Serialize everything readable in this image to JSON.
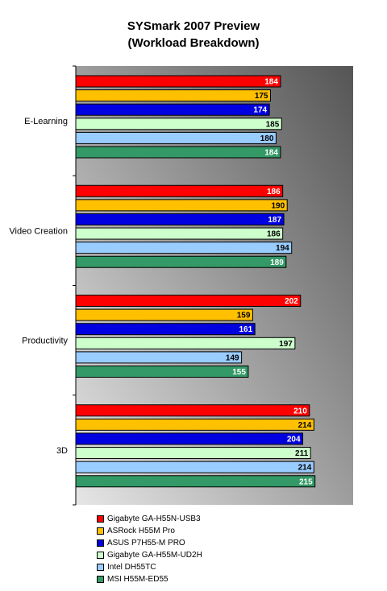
{
  "chart_data": {
    "type": "bar",
    "orientation": "horizontal",
    "title": "SYSmark 2007 Preview",
    "subtitle": "(Workload Breakdown)",
    "categories": [
      "E-Learning",
      "Video Creation",
      "Productivity",
      "3D"
    ],
    "series": [
      {
        "name": "Gigabyte GA-H55N-USB3",
        "color": "#ff0000",
        "values": [
          184,
          186,
          202,
          210
        ]
      },
      {
        "name": "ASRock H55M Pro",
        "color": "#ffc000",
        "values": [
          175,
          190,
          159,
          214
        ]
      },
      {
        "name": "ASUS P7H55-M PRO",
        "color": "#0000e0",
        "values": [
          174,
          187,
          161,
          204
        ]
      },
      {
        "name": "Gigabyte GA-H55M-UD2H",
        "color": "#ccffcc",
        "values": [
          185,
          186,
          197,
          211
        ]
      },
      {
        "name": "Intel DH55TC",
        "color": "#99ccff",
        "values": [
          180,
          194,
          149,
          214
        ]
      },
      {
        "name": "MSI H55M-ED55",
        "color": "#339966",
        "values": [
          184,
          189,
          155,
          215
        ]
      }
    ],
    "xlim": [
      0,
      250
    ],
    "grid": false,
    "legend_position": "bottom"
  }
}
